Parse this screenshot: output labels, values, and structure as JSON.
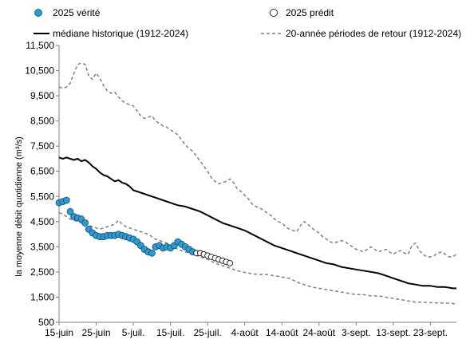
{
  "chart_data": {
    "type": "line",
    "title": "",
    "xlabel": "",
    "ylabel": "la moyenne débit quotidienne (m³/s)",
    "ylim": [
      500,
      11500
    ],
    "yticks": [
      500,
      1500,
      2500,
      3500,
      4500,
      5500,
      6500,
      7500,
      8500,
      9500,
      10500,
      11500
    ],
    "ytick_labels": [
      "500",
      "1,500",
      "2,500",
      "3,500",
      "4,500",
      "5,500",
      "6,500",
      "7,500",
      "8,500",
      "9,500",
      "10,500",
      "11,500"
    ],
    "x_start": "15-juin",
    "x_end": "30-sept.",
    "xticks": [
      {
        "day": 0,
        "label": "15-juin"
      },
      {
        "day": 10,
        "label": "25-juin"
      },
      {
        "day": 20,
        "label": "5-juil."
      },
      {
        "day": 30,
        "label": "15-juil."
      },
      {
        "day": 40,
        "label": "25-juil."
      },
      {
        "day": 50,
        "label": "4-août"
      },
      {
        "day": 60,
        "label": "14-août"
      },
      {
        "day": 70,
        "label": "24-août"
      },
      {
        "day": 80,
        "label": "3-sept."
      },
      {
        "day": 90,
        "label": "13-sept."
      },
      {
        "day": 100,
        "label": "23-sept."
      }
    ],
    "grid": false,
    "legend_position": "top",
    "series": [
      {
        "name": "médiane historique (1912-2024)",
        "style": "solid",
        "color": "#000000",
        "x": [
          0,
          1,
          2,
          3,
          4,
          5,
          6,
          7,
          8,
          9,
          10,
          11,
          12,
          13,
          14,
          15,
          16,
          17,
          18,
          19,
          20,
          22,
          24,
          26,
          28,
          30,
          32,
          34,
          36,
          38,
          40,
          42,
          44,
          46,
          48,
          50,
          52,
          54,
          56,
          58,
          60,
          62,
          64,
          66,
          68,
          70,
          72,
          74,
          76,
          78,
          80,
          82,
          84,
          86,
          88,
          90,
          92,
          94,
          96,
          98,
          100,
          102,
          104,
          106,
          107
        ],
        "values": [
          7050,
          7000,
          7050,
          7000,
          6950,
          7000,
          6900,
          6950,
          6850,
          6700,
          6600,
          6450,
          6350,
          6300,
          6200,
          6100,
          6150,
          6050,
          6000,
          5900,
          5750,
          5650,
          5550,
          5450,
          5350,
          5250,
          5150,
          5100,
          5000,
          4900,
          4750,
          4600,
          4450,
          4350,
          4250,
          4150,
          4000,
          3850,
          3700,
          3550,
          3450,
          3350,
          3250,
          3150,
          3050,
          2950,
          2850,
          2800,
          2700,
          2650,
          2600,
          2550,
          2500,
          2450,
          2350,
          2250,
          2150,
          2050,
          2000,
          1950,
          1950,
          1900,
          1900,
          1850,
          1850
        ]
      },
      {
        "name": "20-année périodes de retour (1912-2024)",
        "style": "dashed",
        "color": "#808080",
        "segment": "upper",
        "x": [
          0,
          1,
          2,
          3,
          4,
          5,
          6,
          7,
          8,
          9,
          10,
          11,
          12,
          13,
          14,
          15,
          16,
          17,
          18,
          19,
          20,
          21,
          22,
          23,
          24,
          25,
          26,
          27,
          28,
          29,
          30,
          31,
          32,
          33,
          34,
          35,
          36,
          37,
          38,
          39,
          40,
          41,
          42,
          43,
          44,
          45,
          46,
          47,
          48,
          49,
          50,
          51,
          52,
          53,
          54,
          55,
          56,
          57,
          58,
          59,
          60,
          61,
          62,
          63,
          64,
          65,
          66,
          67,
          68,
          69,
          70,
          71,
          72,
          73,
          74,
          75,
          76,
          77,
          78,
          79,
          80,
          81,
          82,
          83,
          84,
          85,
          86,
          87,
          88,
          89,
          90,
          91,
          92,
          93,
          94,
          95,
          96,
          97,
          98,
          99,
          100,
          101,
          102,
          103,
          104,
          105,
          106,
          107
        ],
        "values": [
          9850,
          9800,
          9850,
          10000,
          10400,
          10750,
          10800,
          10750,
          10300,
          10150,
          10400,
          10200,
          9900,
          9700,
          9600,
          9650,
          9450,
          9300,
          9200,
          9150,
          9100,
          8900,
          8700,
          8600,
          8650,
          8700,
          8500,
          8400,
          8300,
          8250,
          8150,
          8050,
          7950,
          7750,
          7550,
          7400,
          7300,
          7100,
          6900,
          6700,
          6500,
          6250,
          6100,
          6000,
          6050,
          6100,
          6200,
          6050,
          5800,
          5700,
          5550,
          5400,
          5200,
          5100,
          5050,
          4950,
          4850,
          4750,
          4600,
          4500,
          4450,
          4300,
          4200,
          4150,
          4100,
          4350,
          4500,
          4400,
          4250,
          4150,
          4050,
          3900,
          3800,
          3700,
          3650,
          3700,
          3750,
          3700,
          3600,
          3500,
          3400,
          3350,
          3300,
          3400,
          3500,
          3400,
          3300,
          3350,
          3400,
          3300,
          3200,
          3300,
          3350,
          3250,
          3200,
          3550,
          3650,
          3350,
          3200,
          3100,
          3100,
          3150,
          3250,
          3300,
          3200,
          3100,
          3100,
          3200
        ]
      },
      {
        "name": "20-année périodes de retour (1912-2024)",
        "style": "dashed",
        "color": "#808080",
        "segment": "lower",
        "x": [
          0,
          1,
          2,
          3,
          4,
          5,
          6,
          7,
          8,
          9,
          10,
          11,
          12,
          13,
          14,
          15,
          16,
          17,
          18,
          19,
          20,
          21,
          22,
          23,
          24,
          25,
          26,
          27,
          28,
          29,
          30,
          32,
          34,
          36,
          38,
          40,
          42,
          44,
          46,
          48,
          50,
          52,
          54,
          56,
          58,
          60,
          62,
          64,
          66,
          68,
          70,
          72,
          74,
          76,
          78,
          80,
          82,
          84,
          86,
          88,
          90,
          92,
          94,
          96,
          98,
          100,
          102,
          104,
          106,
          107
        ],
        "values": [
          4850,
          4800,
          4700,
          4600,
          4550,
          4500,
          4450,
          4400,
          4350,
          4300,
          4250,
          4200,
          4250,
          4300,
          4350,
          4400,
          4550,
          4400,
          4300,
          4250,
          4200,
          4150,
          4100,
          4050,
          4000,
          3900,
          3800,
          3750,
          3700,
          3650,
          3550,
          3400,
          3300,
          3200,
          3100,
          3000,
          2850,
          2750,
          2650,
          2550,
          2480,
          2430,
          2400,
          2400,
          2350,
          2300,
          2250,
          2100,
          2000,
          1900,
          1850,
          1800,
          1750,
          1700,
          1650,
          1600,
          1600,
          1550,
          1550,
          1500,
          1450,
          1400,
          1350,
          1300,
          1300,
          1280,
          1270,
          1260,
          1250,
          1200
        ]
      },
      {
        "name": "2025 vérité",
        "style": "markers",
        "color": "#3399cc",
        "x": [
          0,
          1,
          2,
          3,
          4,
          5,
          6,
          7,
          8,
          9,
          10,
          11,
          12,
          13,
          14,
          15,
          16,
          17,
          18,
          19,
          20,
          21,
          22,
          23,
          24,
          25,
          26,
          27,
          28,
          29,
          30,
          31,
          32,
          33,
          34,
          35,
          36
        ],
        "values": [
          5250,
          5300,
          5350,
          4900,
          4700,
          4650,
          4600,
          4450,
          4200,
          4050,
          3950,
          3900,
          3900,
          3950,
          3950,
          3950,
          4000,
          3950,
          3900,
          3850,
          3800,
          3700,
          3550,
          3400,
          3300,
          3250,
          3500,
          3550,
          3450,
          3500,
          3450,
          3550,
          3700,
          3600,
          3500,
          3400,
          3300
        ]
      },
      {
        "name": "2025 prédit",
        "style": "markers-open",
        "color": "#ffffff",
        "x": [
          37,
          38,
          39,
          40,
          41,
          42,
          43,
          44,
          45,
          46
        ],
        "values": [
          3250,
          3250,
          3200,
          3150,
          3100,
          3050,
          3000,
          2950,
          2900,
          2850
        ]
      }
    ]
  }
}
